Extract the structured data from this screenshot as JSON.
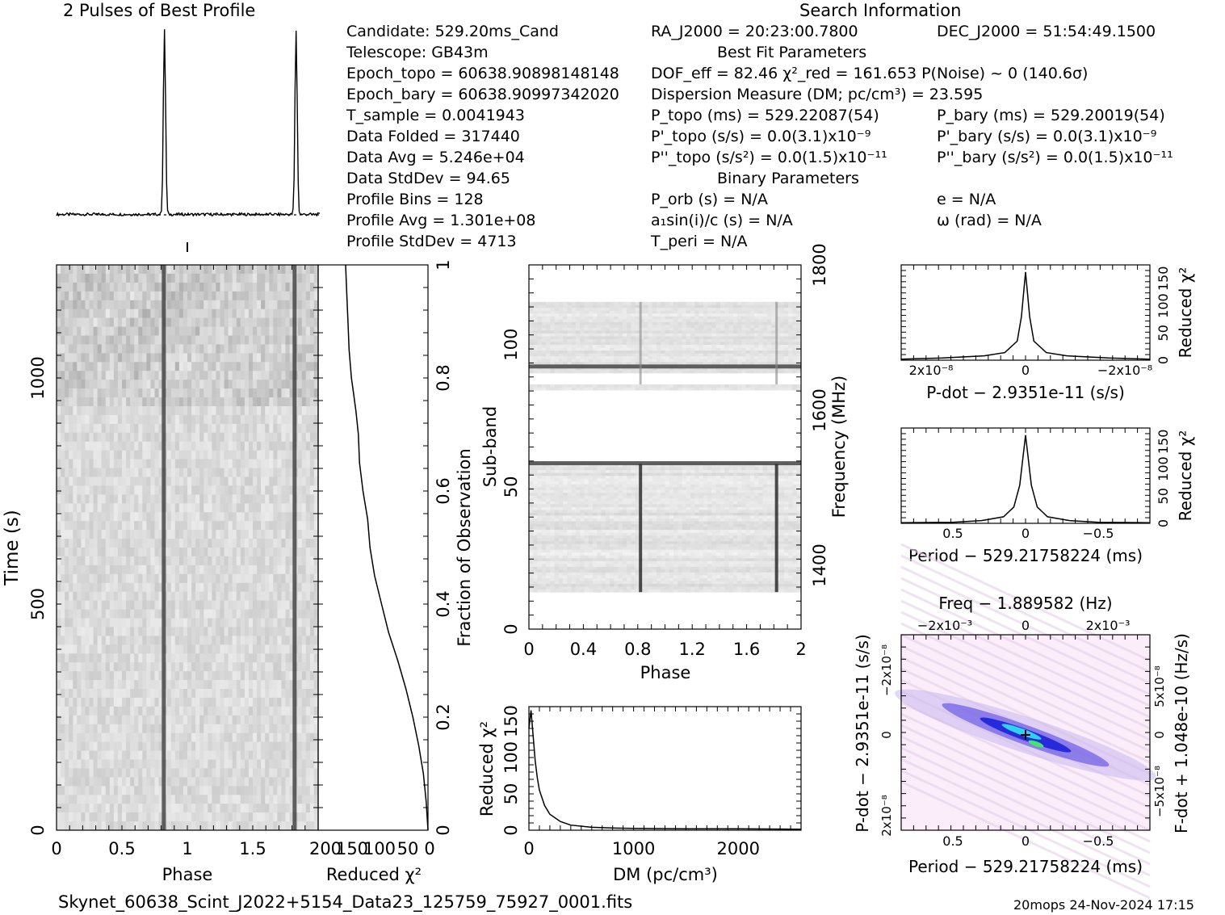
{
  "header": {
    "profile_title": "2 Pulses of Best Profile",
    "search_title": "Search Information",
    "best_fit_title": "Best Fit Parameters",
    "binary_title": "Binary Parameters"
  },
  "info": {
    "left": [
      "Candidate:  529.20ms_Cand",
      "Telescope:  GB43m",
      "Epoch_topo = 60638.90898148148",
      "Epoch_bary = 60638.90997342020",
      "T_sample      =  0.0041943",
      "Data Folded    =  317440",
      "Data Avg       =  5.246e+04",
      "Data StdDev   =  94.65",
      "Profile Bins    =  128",
      "Profile Avg     =  1.301e+08",
      "Profile StdDev =  4713"
    ],
    "ra": "RA_J2000 = 20:23:00.7800",
    "dec": "DEC_J2000 = 51:54:49.1500",
    "dof": "DOF_eff = 82.46  χ²_red = 161.653  P(Noise) ~ 0   (140.6σ)",
    "dm": "Dispersion Measure (DM; pc/cm³) = 23.595",
    "p_topo": "P_topo (ms) =  529.22087(54)",
    "p_bary": "P_bary (ms) =  529.20019(54)",
    "pd_topo": "P'_topo (s/s) = 0.0(3.1)x10⁻⁹",
    "pd_bary": "P'_bary (s/s) = 0.0(3.1)x10⁻⁹",
    "pdd_topo": "P''_topo (s/s²) = 0.0(1.5)x10⁻¹¹",
    "pdd_bary": "P''_bary (s/s²) = 0.0(1.5)x10⁻¹¹",
    "p_orb": "P_orb (s) = N/A",
    "e": "e = N/A",
    "a1": "a₁sin(i)/c (s) = N/A",
    "omega": "ω (rad) = N/A",
    "t_peri": "T_peri = N/A"
  },
  "footer": {
    "filename": "Skynet_60638_Scint_J2022+5154_Data23_125759_75927_0001.fits",
    "stamp": "20mops 24-Nov-2024 17:15"
  },
  "chart_data": [
    {
      "type": "line",
      "name": "profile",
      "title": "2 Pulses of Best Profile",
      "x": [
        0,
        0.4,
        0.8,
        0.82,
        0.84,
        1.0,
        1.4,
        1.8,
        1.82,
        1.84,
        2.0
      ],
      "y": [
        0.02,
        0.02,
        0.1,
        1.0,
        0.1,
        0.02,
        0.02,
        0.1,
        1.0,
        0.1,
        0.02
      ]
    },
    {
      "type": "heatmap",
      "name": "time-phase",
      "xlabel": "Phase",
      "ylabel": "Time (s)",
      "xlim": [
        0,
        2
      ],
      "ylim": [
        0,
        1250
      ],
      "x_ticks": [
        "0",
        "0.5",
        "1",
        "1.5"
      ],
      "y_ticks": [
        "0",
        "500",
        "1000"
      ],
      "pulse_phases": [
        0.82,
        1.82
      ]
    },
    {
      "type": "line",
      "name": "chi2-vs-time",
      "xlabel": "Reduced χ²",
      "ylabel": "Fraction of Observation",
      "x_ticks": [
        "200",
        "150",
        "100",
        "50",
        "0"
      ],
      "y_ticks": [
        "0",
        "0.2",
        "0.4",
        "0.6",
        "0.8",
        "1"
      ],
      "x": [
        0,
        3,
        8,
        16,
        26,
        38,
        52,
        68,
        80,
        92,
        100,
        104,
        112,
        118,
        120,
        124,
        128,
        132,
        136,
        138,
        140,
        142
      ],
      "y": [
        0.0,
        0.05,
        0.1,
        0.15,
        0.2,
        0.25,
        0.3,
        0.35,
        0.4,
        0.45,
        0.5,
        0.55,
        0.6,
        0.65,
        0.7,
        0.74,
        0.77,
        0.8,
        0.85,
        0.9,
        0.95,
        1.0
      ]
    },
    {
      "type": "heatmap",
      "name": "subband-phase",
      "xlabel": "Phase",
      "ylabel": "Sub-band",
      "y2label": "Frequency (MHz)",
      "xlim": [
        0,
        2
      ],
      "ylim": [
        0,
        128
      ],
      "x_ticks": [
        "0",
        "0.4",
        "0.8",
        "1.2",
        "1.6",
        "2"
      ],
      "y_ticks": [
        "0",
        "50",
        "100"
      ],
      "y2_ticks": [
        "1400",
        "1600",
        "1800"
      ],
      "pulse_phases": [
        0.82,
        1.82
      ],
      "bright_subbands": [
        58,
        92
      ],
      "masked_subbands": [
        [
          0,
          13
        ],
        [
          86,
          90
        ],
        [
          59,
          84
        ],
        [
          115,
          128
        ]
      ]
    },
    {
      "type": "line",
      "name": "dm-chi2",
      "xlabel": "DM (pc/cm³)",
      "ylabel": "Reduced χ²",
      "x_ticks": [
        "0",
        "1000",
        "2000"
      ],
      "y_ticks": [
        "0",
        "50",
        "100",
        "150"
      ],
      "x": [
        0,
        20,
        40,
        60,
        80,
        100,
        150,
        200,
        300,
        400,
        600,
        800,
        1000,
        1500,
        2000,
        2600
      ],
      "y": [
        140,
        165,
        130,
        95,
        72,
        55,
        34,
        22,
        12,
        7,
        4,
        3,
        2.5,
        2,
        2,
        1.5
      ]
    },
    {
      "type": "line",
      "name": "pdot-chi2",
      "xlabel": "P-dot − 2.9351e-11 (s/s)",
      "ylabel": "Reduced χ²",
      "x_ticks": [
        "2x10⁻⁸",
        "0",
        "−2x10⁻⁸"
      ],
      "y_ticks": [
        "0",
        "50",
        "100",
        "150"
      ],
      "x": [
        -3,
        -2,
        -1,
        -0.5,
        -0.2,
        -0.1,
        0,
        0.1,
        0.2,
        0.5,
        1,
        2,
        3
      ],
      "y": [
        2,
        4,
        8,
        14,
        35,
        80,
        162,
        80,
        35,
        14,
        8,
        4,
        2
      ]
    },
    {
      "type": "line",
      "name": "period-chi2",
      "xlabel": "Period − 529.21758224 (ms)",
      "ylabel": "Reduced χ²",
      "x_ticks": [
        "0.5",
        "0",
        "−0.5"
      ],
      "y_ticks": [
        "0",
        "50",
        "100",
        "150"
      ],
      "x": [
        -0.85,
        -0.5,
        -0.3,
        -0.15,
        -0.08,
        -0.04,
        0,
        0.04,
        0.08,
        0.15,
        0.3,
        0.5,
        0.85
      ],
      "y": [
        1,
        2,
        5,
        12,
        30,
        70,
        162,
        70,
        30,
        12,
        5,
        2,
        1
      ]
    },
    {
      "type": "heatmap",
      "name": "period-pdot",
      "title": "Freq − 1.889582 (Hz)",
      "xlabel": "Period − 529.21758224 (ms)",
      "ylabel": "P-dot − 2.9351e-11 (s/s)",
      "y2label": "F-dot + 1.048e-10 (Hz/s)",
      "x_ticks": [
        "0.5",
        "0",
        "−0.5"
      ],
      "x2_ticks": [
        "−2x10⁻³",
        "0",
        "2x10⁻³"
      ],
      "y_ticks": [
        "−2x10⁻⁸",
        "0",
        "2x10⁻⁸"
      ],
      "y2_ticks": [
        "5x10⁻⁸",
        "0",
        "−5x10⁻⁸"
      ]
    }
  ]
}
